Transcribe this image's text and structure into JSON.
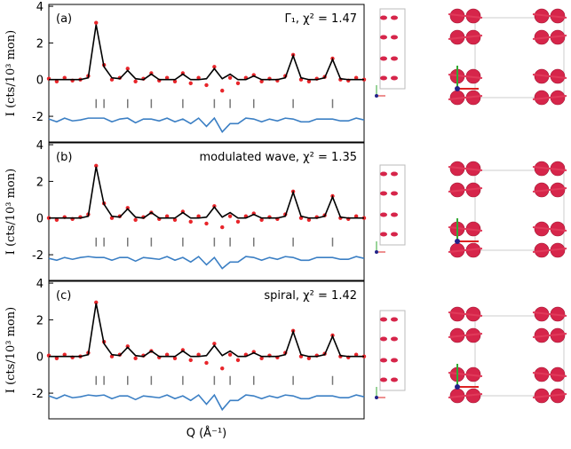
{
  "chart_data": [
    {
      "type": "line",
      "label": "(a)",
      "title": "Γ₁,  χ² = 1.47",
      "ylabel": "I (cts/10³ mon)",
      "x": [
        0,
        2.5,
        5,
        7.5,
        10,
        12.5,
        15,
        17.5,
        20,
        22.5,
        25,
        27.5,
        30,
        32.5,
        35,
        37.5,
        40,
        42.5,
        45,
        47.5,
        50,
        52.5,
        55,
        57.5,
        60,
        62.5,
        65,
        67.5,
        70,
        72.5,
        75,
        77.5,
        80,
        82.5,
        85,
        87.5,
        90,
        92.5,
        95,
        97.5,
        100
      ],
      "xlim": [
        0,
        100
      ],
      "ylim": [
        -3.4,
        4.1
      ],
      "yticks": [
        -2,
        0,
        2,
        4
      ],
      "bragg_positions": [
        15,
        17.5,
        25,
        32.5,
        42.5,
        52.5,
        57.5,
        65,
        77.5,
        90
      ],
      "bragg_color": "#777777",
      "series": [
        {
          "color": "#e8252a",
          "marker": "o",
          "values": [
            0.05,
            -0.1,
            0.1,
            -0.05,
            0,
            0.2,
            3.1,
            0.8,
            0,
            0.1,
            0.6,
            -0.1,
            0.05,
            0.35,
            -0.05,
            0.1,
            -0.1,
            0.35,
            -0.2,
            0.1,
            -0.3,
            0.7,
            -0.6,
            0.1,
            -0.2,
            0.1,
            0.25,
            -0.1,
            0.05,
            -0.05,
            0.2,
            1.35,
            0,
            -0.1,
            0.05,
            0.15,
            1.15,
            0,
            -0.05,
            0.1,
            0
          ]
        },
        {
          "color": "#000000",
          "marker": "none",
          "values": [
            0,
            0,
            0,
            0,
            0,
            0.1,
            3.0,
            0.7,
            0.1,
            0.05,
            0.5,
            0.05,
            0,
            0.3,
            0,
            0,
            0,
            0.3,
            0,
            0,
            0.05,
            0.6,
            0.05,
            0.3,
            0,
            0,
            0.2,
            0,
            0,
            0,
            0.1,
            1.3,
            0.1,
            0,
            0,
            0.1,
            1.1,
            0.05,
            0,
            0,
            0
          ]
        },
        {
          "color": "#3b7fc4",
          "marker": "none",
          "values": [
            -2.15,
            -2.3,
            -2.1,
            -2.25,
            -2.2,
            -2.1,
            -2.1,
            -2.1,
            -2.3,
            -2.15,
            -2.1,
            -2.35,
            -2.15,
            -2.15,
            -2.25,
            -2.1,
            -2.3,
            -2.15,
            -2.4,
            -2.1,
            -2.55,
            -2.1,
            -2.85,
            -2.4,
            -2.4,
            -2.1,
            -2.15,
            -2.3,
            -2.15,
            -2.25,
            -2.1,
            -2.15,
            -2.3,
            -2.3,
            -2.15,
            -2.15,
            -2.15,
            -2.25,
            -2.25,
            -2.1,
            -2.2
          ]
        }
      ]
    },
    {
      "type": "line",
      "label": "(b)",
      "title": "modulated wave,  χ² = 1.35",
      "ylabel": "I (cts/10³ mon)",
      "x": [
        0,
        2.5,
        5,
        7.5,
        10,
        12.5,
        15,
        17.5,
        20,
        22.5,
        25,
        27.5,
        30,
        32.5,
        35,
        37.5,
        40,
        42.5,
        45,
        47.5,
        50,
        52.5,
        55,
        57.5,
        60,
        62.5,
        65,
        67.5,
        70,
        72.5,
        75,
        77.5,
        80,
        82.5,
        85,
        87.5,
        90,
        92.5,
        95,
        97.5,
        100
      ],
      "xlim": [
        0,
        100
      ],
      "ylim": [
        -3.4,
        4.1
      ],
      "yticks": [
        -2,
        0,
        2,
        4
      ],
      "bragg_positions": [
        15,
        17.5,
        25,
        32.5,
        42.5,
        52.5,
        57.5,
        65,
        77.5,
        90
      ],
      "bragg_color": "#777777",
      "series": [
        {
          "color": "#e8252a",
          "marker": "o",
          "values": [
            0,
            -0.1,
            0.05,
            -0.05,
            0.05,
            0.2,
            2.85,
            0.8,
            0,
            0.1,
            0.55,
            -0.1,
            0.05,
            0.3,
            -0.05,
            0.1,
            -0.1,
            0.35,
            -0.2,
            0.1,
            -0.3,
            0.65,
            -0.5,
            0.1,
            -0.2,
            0.1,
            0.25,
            -0.1,
            0.05,
            -0.05,
            0.2,
            1.45,
            0,
            -0.1,
            0.05,
            0.15,
            1.2,
            0,
            -0.05,
            0.1,
            0
          ]
        },
        {
          "color": "#000000",
          "marker": "none",
          "values": [
            0,
            0,
            0,
            0,
            0,
            0.1,
            2.8,
            0.75,
            0.1,
            0.05,
            0.5,
            0.05,
            0,
            0.3,
            0,
            0,
            0,
            0.3,
            0,
            0,
            0.05,
            0.6,
            0.05,
            0.3,
            0,
            0,
            0.2,
            0,
            0,
            0,
            0.1,
            1.4,
            0.1,
            0,
            0,
            0.1,
            1.15,
            0.05,
            0,
            0,
            0
          ]
        },
        {
          "color": "#3b7fc4",
          "marker": "none",
          "values": [
            -2.2,
            -2.3,
            -2.15,
            -2.25,
            -2.15,
            -2.1,
            -2.15,
            -2.15,
            -2.3,
            -2.15,
            -2.15,
            -2.35,
            -2.15,
            -2.2,
            -2.25,
            -2.1,
            -2.3,
            -2.15,
            -2.4,
            -2.1,
            -2.55,
            -2.15,
            -2.75,
            -2.4,
            -2.4,
            -2.1,
            -2.15,
            -2.3,
            -2.15,
            -2.25,
            -2.1,
            -2.15,
            -2.3,
            -2.3,
            -2.15,
            -2.15,
            -2.15,
            -2.25,
            -2.25,
            -2.1,
            -2.2
          ]
        }
      ]
    },
    {
      "type": "line",
      "label": "(c)",
      "title": "spiral,  χ² = 1.42",
      "ylabel": "I (cts/10³ mon)",
      "xlabel": "Q (Å⁻¹)",
      "x": [
        0,
        2.5,
        5,
        7.5,
        10,
        12.5,
        15,
        17.5,
        20,
        22.5,
        25,
        27.5,
        30,
        32.5,
        35,
        37.5,
        40,
        42.5,
        45,
        47.5,
        50,
        52.5,
        55,
        57.5,
        60,
        62.5,
        65,
        67.5,
        70,
        72.5,
        75,
        77.5,
        80,
        82.5,
        85,
        87.5,
        90,
        92.5,
        95,
        97.5,
        100
      ],
      "xlim": [
        0,
        100
      ],
      "ylim": [
        -3.4,
        4.1
      ],
      "yticks": [
        -2,
        0,
        2,
        4
      ],
      "bragg_positions": [
        15,
        17.5,
        25,
        32.5,
        42.5,
        52.5,
        57.5,
        65,
        77.5,
        90
      ],
      "bragg_color": "#777777",
      "series": [
        {
          "color": "#e8252a",
          "marker": "o",
          "values": [
            0.05,
            -0.1,
            0.1,
            -0.05,
            0,
            0.2,
            2.95,
            0.8,
            0,
            0.1,
            0.55,
            -0.1,
            0.05,
            0.3,
            -0.05,
            0.1,
            -0.1,
            0.35,
            -0.2,
            0.1,
            -0.35,
            0.7,
            -0.65,
            0.1,
            -0.2,
            0.1,
            0.25,
            -0.1,
            0.05,
            -0.05,
            0.2,
            1.4,
            0,
            -0.1,
            0.05,
            0.15,
            1.15,
            0,
            -0.05,
            0.1,
            0
          ]
        },
        {
          "color": "#000000",
          "marker": "none",
          "values": [
            0,
            0,
            0,
            0,
            0,
            0.1,
            2.9,
            0.7,
            0.1,
            0.05,
            0.5,
            0.05,
            0,
            0.3,
            0,
            0,
            0,
            0.3,
            0,
            0,
            0.05,
            0.6,
            0.05,
            0.3,
            0,
            0,
            0.2,
            0,
            0,
            0,
            0.1,
            1.35,
            0.1,
            0,
            0,
            0.1,
            1.1,
            0.05,
            0,
            0,
            0
          ]
        },
        {
          "color": "#3b7fc4",
          "marker": "none",
          "values": [
            -2.15,
            -2.3,
            -2.1,
            -2.25,
            -2.2,
            -2.1,
            -2.15,
            -2.1,
            -2.3,
            -2.15,
            -2.15,
            -2.35,
            -2.15,
            -2.2,
            -2.25,
            -2.1,
            -2.3,
            -2.15,
            -2.4,
            -2.1,
            -2.6,
            -2.1,
            -2.9,
            -2.4,
            -2.4,
            -2.1,
            -2.15,
            -2.3,
            -2.15,
            -2.25,
            -2.1,
            -2.15,
            -2.3,
            -2.3,
            -2.15,
            -2.15,
            -2.15,
            -2.25,
            -2.25,
            -2.1,
            -2.2
          ]
        }
      ]
    }
  ]
}
